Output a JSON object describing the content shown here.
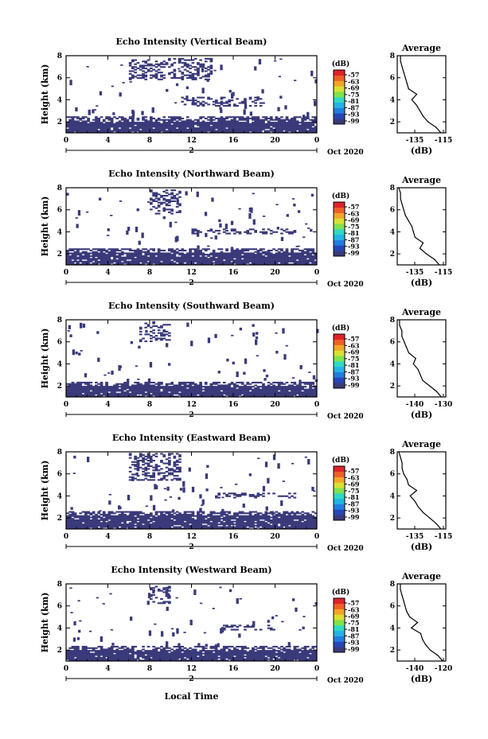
{
  "figure": {
    "x_axis_label": "Local Time",
    "day_label": "2",
    "month_year_label": "Oct 2020"
  },
  "colorbar": {
    "unit": "(dB)",
    "tick_labels": [
      "-57",
      "-63",
      "-69",
      "-75",
      "-81",
      "-87",
      "-93",
      "-99"
    ],
    "colors": [
      "#3a3a7a",
      "#2646b8",
      "#1f7ee0",
      "#23b3e6",
      "#30d9c4",
      "#7fe24d",
      "#d9e032",
      "#f3a42a",
      "#ee6023",
      "#e0222a"
    ]
  },
  "chart_data": [
    {
      "type": "heatmap",
      "title": "Echo Intensity (Vertical Beam)",
      "ylabel": "Height (km)",
      "x_ticks": [
        "0",
        "4",
        "8",
        "12",
        "16",
        "20",
        "0"
      ],
      "y_ticks": [
        "2",
        "4",
        "6",
        "8"
      ],
      "xlim": [
        0,
        24
      ],
      "ylim": [
        1,
        8
      ],
      "echo_layers_km": [
        {
          "hours": [
            0,
            24
          ],
          "base": 1.0,
          "top": 2.4,
          "note_hidden": true
        },
        {
          "hours": [
            6,
            14
          ],
          "base": 5.8,
          "top": 7.8
        },
        {
          "hours": [
            11,
            19
          ],
          "base": 3.4,
          "top": 4.2
        }
      ],
      "average_profile": {
        "title": "Average",
        "xlabel": "(dB)",
        "x_ticks": [
          "-135",
          "-115"
        ],
        "y_ticks": [
          "2",
          "4",
          "6",
          "8"
        ],
        "xlim": [
          -140,
          -110
        ],
        "ylim": [
          1,
          8
        ],
        "height_km": [
          1.0,
          1.5,
          2.0,
          2.5,
          3.0,
          3.5,
          4.0,
          4.5,
          5.0,
          5.5,
          6.0,
          6.5,
          7.0,
          7.5,
          8.0
        ],
        "db": [
          -113,
          -116,
          -121,
          -124,
          -126,
          -128,
          -131,
          -128,
          -133,
          -134,
          -135,
          -136,
          -137,
          -138,
          -138
        ]
      }
    },
    {
      "type": "heatmap",
      "title": "Echo Intensity (Northward Beam)",
      "ylabel": "Height (km)",
      "x_ticks": [
        "0",
        "4",
        "8",
        "12",
        "16",
        "20",
        "0"
      ],
      "y_ticks": [
        "2",
        "4",
        "6",
        "8"
      ],
      "xlim": [
        0,
        24
      ],
      "ylim": [
        1,
        8
      ],
      "echo_layers_km": [
        {
          "hours": [
            0,
            24
          ],
          "base": 1.0,
          "top": 2.5
        },
        {
          "hours": [
            8,
            11
          ],
          "base": 5.6,
          "top": 7.8
        },
        {
          "hours": [
            12,
            22
          ],
          "base": 3.8,
          "top": 4.2
        }
      ],
      "average_profile": {
        "title": "Average",
        "xlabel": "(dB)",
        "x_ticks": [
          "-135",
          "-115"
        ],
        "y_ticks": [
          "2",
          "4",
          "6",
          "8"
        ],
        "xlim": [
          -140,
          -110
        ],
        "ylim": [
          1,
          8
        ],
        "height_km": [
          1.0,
          1.5,
          2.0,
          2.5,
          3.0,
          3.5,
          4.0,
          4.5,
          5.0,
          5.5,
          6.0,
          6.5,
          7.0,
          7.5,
          8.0
        ],
        "db": [
          -114,
          -117,
          -122,
          -126,
          -124,
          -129,
          -130,
          -131,
          -133,
          -135,
          -136,
          -137,
          -138,
          -138,
          -139
        ]
      }
    },
    {
      "type": "heatmap",
      "title": "Echo Intensity (Southward Beam)",
      "ylabel": "Height (km)",
      "x_ticks": [
        "0",
        "4",
        "8",
        "12",
        "16",
        "20",
        "0"
      ],
      "y_ticks": [
        "2",
        "4",
        "6",
        "8"
      ],
      "xlim": [
        0,
        24
      ],
      "ylim": [
        1,
        8
      ],
      "echo_layers_km": [
        {
          "hours": [
            0,
            24
          ],
          "base": 1.0,
          "top": 2.3
        },
        {
          "hours": [
            7,
            10
          ],
          "base": 6.0,
          "top": 7.8
        }
      ],
      "average_profile": {
        "title": "Average",
        "xlabel": "(dB)",
        "x_ticks": [
          "-140",
          "-130"
        ],
        "y_ticks": [
          "2",
          "4",
          "6",
          "8"
        ],
        "xlim": [
          -143,
          -122
        ],
        "ylim": [
          1,
          8
        ],
        "height_km": [
          1.0,
          1.5,
          2.0,
          2.5,
          3.0,
          3.5,
          4.0,
          4.5,
          5.0,
          5.5,
          6.0,
          6.5,
          7.0,
          7.5,
          8.0
        ],
        "db": [
          -124,
          -126,
          -129,
          -132,
          -133,
          -134,
          -136,
          -135,
          -138,
          -139,
          -140,
          -141,
          -141,
          -142,
          -142
        ]
      }
    },
    {
      "type": "heatmap",
      "title": "Echo Intensity (Eastward Beam)",
      "ylabel": "Height (km)",
      "x_ticks": [
        "0",
        "4",
        "8",
        "12",
        "16",
        "20",
        "0"
      ],
      "y_ticks": [
        "2",
        "4",
        "6",
        "8"
      ],
      "xlim": [
        0,
        24
      ],
      "ylim": [
        1,
        8
      ],
      "echo_layers_km": [
        {
          "hours": [
            0,
            24
          ],
          "base": 1.0,
          "top": 2.6
        },
        {
          "hours": [
            6,
            11
          ],
          "base": 5.4,
          "top": 7.8
        },
        {
          "hours": [
            14,
            22
          ],
          "base": 3.8,
          "top": 4.2
        }
      ],
      "average_profile": {
        "title": "Average",
        "xlabel": "(dB)",
        "x_ticks": [
          "-135",
          "-115"
        ],
        "y_ticks": [
          "2",
          "4",
          "6",
          "8"
        ],
        "xlim": [
          -140,
          -110
        ],
        "ylim": [
          1,
          8
        ],
        "height_km": [
          1.0,
          1.5,
          2.0,
          2.5,
          3.0,
          3.5,
          4.0,
          4.5,
          5.0,
          5.5,
          6.0,
          6.5,
          7.0,
          7.5,
          8.0
        ],
        "db": [
          -113,
          -116,
          -120,
          -124,
          -127,
          -129,
          -132,
          -128,
          -133,
          -134,
          -136,
          -137,
          -137,
          -138,
          -139
        ]
      }
    },
    {
      "type": "heatmap",
      "title": "Echo Intensity (Westward Beam)",
      "ylabel": "Height (km)",
      "x_ticks": [
        "0",
        "4",
        "8",
        "12",
        "16",
        "20",
        "0"
      ],
      "y_ticks": [
        "2",
        "4",
        "6",
        "8"
      ],
      "xlim": [
        0,
        24
      ],
      "ylim": [
        1,
        8
      ],
      "echo_layers_km": [
        {
          "hours": [
            0,
            24
          ],
          "base": 1.0,
          "top": 2.3
        },
        {
          "hours": [
            8,
            10
          ],
          "base": 6.2,
          "top": 7.8
        },
        {
          "hours": [
            15,
            20
          ],
          "base": 3.8,
          "top": 4.2
        }
      ],
      "average_profile": {
        "title": "Average",
        "xlabel": "(dB)",
        "x_ticks": [
          "-140",
          "-120"
        ],
        "y_ticks": [
          "2",
          "4",
          "6",
          "8"
        ],
        "xlim": [
          -143,
          -112
        ],
        "ylim": [
          1,
          8
        ],
        "height_km": [
          1.0,
          1.5,
          2.0,
          2.5,
          3.0,
          3.5,
          4.0,
          4.5,
          5.0,
          5.5,
          6.0,
          6.5,
          7.0,
          7.5,
          8.0
        ],
        "db": [
          -114,
          -117,
          -122,
          -125,
          -127,
          -128,
          -134,
          -130,
          -135,
          -137,
          -138,
          -139,
          -140,
          -141,
          -141
        ]
      }
    }
  ]
}
